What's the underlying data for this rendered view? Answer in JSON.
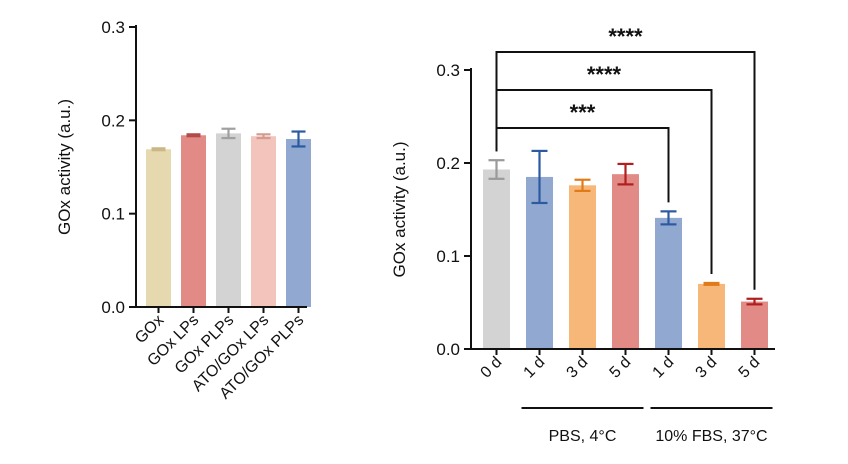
{
  "chart_data": [
    {
      "type": "bar",
      "ylabel": "GOx activity (a.u.)",
      "ylim": [
        0,
        0.3
      ],
      "yticks": [
        "0.0",
        "0.1",
        "0.2",
        "0.3"
      ],
      "categories": [
        "GOx",
        "GOx LPs",
        "GOx PLPs",
        "ATO/GOx LPs",
        "ATO/GOx PLPs"
      ],
      "values": [
        0.169,
        0.184,
        0.186,
        0.183,
        0.18
      ],
      "errors": [
        0.001,
        0.001,
        0.005,
        0.002,
        0.008
      ],
      "colors": [
        "#e6d9b0",
        "#e28a86",
        "#d3d3d3",
        "#f2c4bc",
        "#91a9d1"
      ],
      "error_colors": [
        "#c9b885",
        "#b24a48",
        "#a0a0a0",
        "#d49a8f",
        "#2c5aa0"
      ]
    },
    {
      "type": "bar",
      "ylabel": "GOx activity (a.u.)",
      "ylim": [
        0,
        0.3
      ],
      "yticks": [
        "0.0",
        "0.1",
        "0.2",
        "0.3"
      ],
      "categories": [
        "0 d",
        "1 d",
        "3 d",
        "5 d",
        "1 d",
        "3 d",
        "5 d"
      ],
      "values": [
        0.193,
        0.185,
        0.176,
        0.188,
        0.141,
        0.07,
        0.051
      ],
      "errors": [
        0.01,
        0.028,
        0.006,
        0.011,
        0.007,
        0.001,
        0.003
      ],
      "colors": [
        "#d3d3d3",
        "#91a9d1",
        "#f7b779",
        "#e28a86",
        "#91a9d1",
        "#f7b779",
        "#e28a86"
      ],
      "error_colors": [
        "#9a9a9a",
        "#2c5aa0",
        "#e07b1a",
        "#b01f1f",
        "#2c5aa0",
        "#e07b1a",
        "#b01f1f"
      ],
      "groups": [
        {
          "label": "PBS, 4°C",
          "from": 1,
          "to": 3
        },
        {
          "label": "10% FBS, 37°C",
          "from": 4,
          "to": 6
        }
      ],
      "significance": [
        {
          "from": 0,
          "to": 4,
          "label": "***"
        },
        {
          "from": 0,
          "to": 5,
          "label": "****"
        },
        {
          "from": 0,
          "to": 6,
          "label": "****"
        }
      ]
    }
  ]
}
